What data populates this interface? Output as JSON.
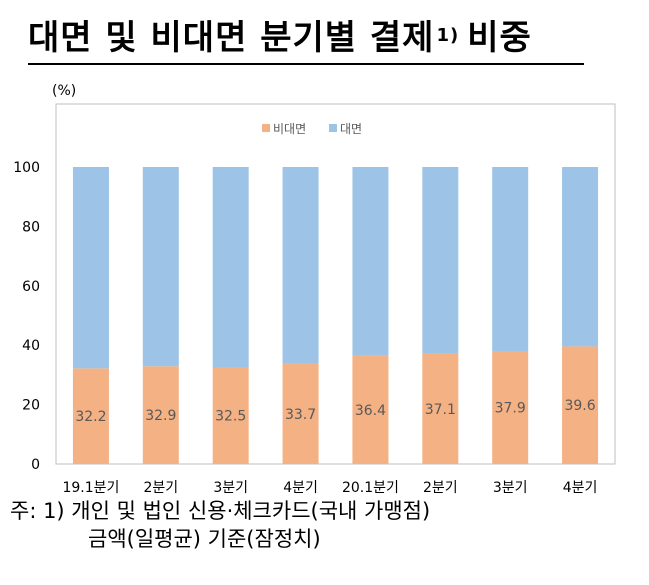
{
  "title": "대면 및 비대면 분기별 결제",
  "title_footnote_mark": "1)",
  "title_suffix": "비중",
  "footnote": {
    "line1": "주: 1) 개인 및 법인 신용·체크카드(국내 가맹점)",
    "line2": "금액(일평균) 기준(잠정치)"
  },
  "chart_data": {
    "type": "bar",
    "stacked": true,
    "unit_label": "(%)",
    "categories": [
      "19.1분기",
      "2분기",
      "3분기",
      "4분기",
      "20.1분기",
      "2분기",
      "3분기",
      "4분기"
    ],
    "series": [
      {
        "name": "비대면",
        "values": [
          32.2,
          32.9,
          32.5,
          33.7,
          36.4,
          37.1,
          37.9,
          39.6
        ],
        "color": "#f4b183"
      },
      {
        "name": "대면",
        "values": [
          67.8,
          67.1,
          67.5,
          66.3,
          63.6,
          62.9,
          62.1,
          60.4
        ],
        "color": "#9dc3e6"
      }
    ],
    "data_labels": [
      "32.2",
      "32.9",
      "32.5",
      "33.7",
      "36.4",
      "37.1",
      "37.9",
      "39.6"
    ],
    "yticks": [
      "0",
      "20",
      "40",
      "60",
      "80",
      "100"
    ],
    "ylim": [
      0,
      100
    ],
    "legend_position": "top-center",
    "grid": false
  }
}
